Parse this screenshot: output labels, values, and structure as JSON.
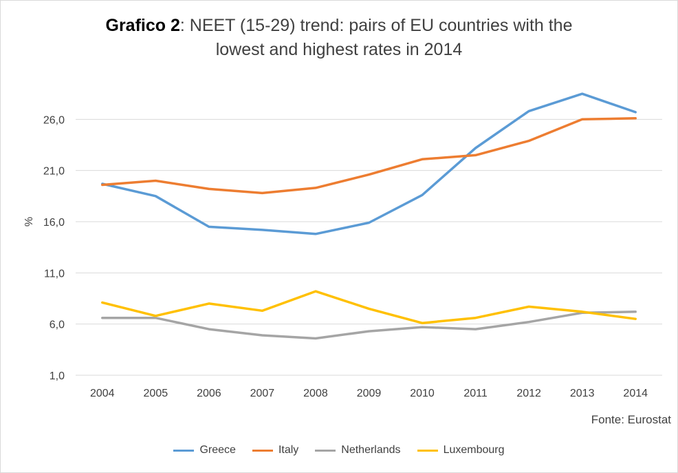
{
  "chart_data": {
    "type": "line",
    "title_bold": "Grafico 2",
    "title_rest": ": NEET (15-29) trend: pairs of EU countries with the",
    "title_line2": "lowest and highest rates in 2014",
    "ylabel": "%",
    "xlabel": "",
    "source": "Fonte: Eurostat",
    "ylim": [
      1,
      31
    ],
    "yticks": [
      1,
      6,
      11,
      16,
      21,
      26
    ],
    "ytick_labels": [
      "1,0",
      "6,0",
      "11,0",
      "16,0",
      "21,0",
      "26,0"
    ],
    "categories": [
      "2004",
      "2005",
      "2006",
      "2007",
      "2008",
      "2009",
      "2010",
      "2011",
      "2012",
      "2013",
      "2014"
    ],
    "grid": true,
    "legend_position": "bottom",
    "series": [
      {
        "name": "Greece",
        "color": "#5b9bd5",
        "values": [
          19.7,
          18.5,
          15.5,
          15.2,
          14.8,
          15.9,
          18.6,
          23.2,
          26.8,
          28.5,
          26.7
        ]
      },
      {
        "name": "Italy",
        "color": "#ed7d31",
        "values": [
          19.6,
          20.0,
          19.2,
          18.8,
          19.3,
          20.6,
          22.1,
          22.5,
          23.9,
          26.0,
          26.1
        ]
      },
      {
        "name": "Netherlands",
        "color": "#a5a5a5",
        "values": [
          6.6,
          6.6,
          5.5,
          4.9,
          4.6,
          5.3,
          5.7,
          5.5,
          6.2,
          7.1,
          7.2
        ]
      },
      {
        "name": "Luxembourg",
        "color": "#ffc000",
        "values": [
          8.1,
          6.8,
          8.0,
          7.3,
          9.2,
          7.5,
          6.1,
          6.6,
          7.7,
          7.2,
          6.5
        ]
      }
    ]
  }
}
